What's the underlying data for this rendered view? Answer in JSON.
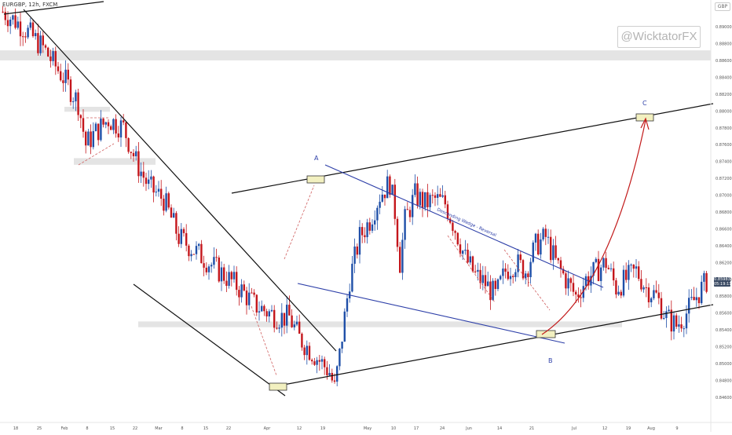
{
  "symbol_label": "EURGBP, 12h, FXCM",
  "watermark": "@WicktatorFX",
  "currency": "GBP",
  "price_label": {
    "price": "0.85983",
    "countdown": "05:19:11"
  },
  "colors": {
    "bull": "#1f4fa8",
    "bear": "#c4161c",
    "wedge": "#2d3fa8",
    "arrow": "#c21a1a",
    "zone": "#e4e4e4",
    "box": "#f2f0c0"
  },
  "chart_data": {
    "type": "candlestick",
    "title": "",
    "instrument": "EURGBP",
    "timeframe": "12h",
    "ylim": [
      0.843,
      0.893
    ],
    "y_ticks": [
      "0.89200",
      "0.89000",
      "0.88800",
      "0.88600",
      "0.88400",
      "0.88200",
      "0.88000",
      "0.87800",
      "0.87600",
      "0.87400",
      "0.87200",
      "0.87000",
      "0.86800",
      "0.86600",
      "0.86400",
      "0.86200",
      "0.86000",
      "0.85800",
      "0.85600",
      "0.85400",
      "0.85200",
      "0.85000",
      "0.84800",
      "0.84600"
    ],
    "x_ticks": [
      "18",
      "25",
      "Feb",
      "8",
      "15",
      "22",
      "Mar",
      "8",
      "15",
      "22",
      "Apr",
      "12",
      "19",
      "May",
      "10",
      "17",
      "24",
      "Jun",
      "14",
      "21",
      "Jul",
      "12",
      "19",
      "Aug",
      "9"
    ],
    "current_price": 0.85983,
    "path_anchors": [
      [
        0,
        0.8918
      ],
      [
        8,
        0.89
      ],
      [
        16,
        0.8875
      ],
      [
        24,
        0.884
      ],
      [
        30,
        0.881
      ],
      [
        33,
        0.876
      ],
      [
        37,
        0.8775
      ],
      [
        42,
        0.879
      ],
      [
        48,
        0.878
      ],
      [
        53,
        0.874
      ],
      [
        58,
        0.871
      ],
      [
        64,
        0.8695
      ],
      [
        70,
        0.865
      ],
      [
        78,
        0.863
      ],
      [
        86,
        0.861
      ],
      [
        94,
        0.859
      ],
      [
        100,
        0.857
      ],
      [
        106,
        0.856
      ],
      [
        110,
        0.8555
      ],
      [
        114,
        0.8555
      ],
      [
        118,
        0.853
      ],
      [
        124,
        0.851
      ],
      [
        130,
        0.849
      ],
      [
        132,
        0.847
      ],
      [
        134,
        0.851
      ],
      [
        138,
        0.86
      ],
      [
        142,
        0.865
      ],
      [
        146,
        0.867
      ],
      [
        150,
        0.87
      ],
      [
        154,
        0.8715
      ],
      [
        156,
        0.868
      ],
      [
        158,
        0.862
      ],
      [
        160,
        0.867
      ],
      [
        164,
        0.87
      ],
      [
        168,
        0.869
      ],
      [
        172,
        0.8695
      ],
      [
        176,
        0.869
      ],
      [
        180,
        0.866
      ],
      [
        184,
        0.8625
      ],
      [
        188,
        0.8605
      ],
      [
        192,
        0.8595
      ],
      [
        196,
        0.858
      ],
      [
        200,
        0.861
      ],
      [
        204,
        0.862
      ],
      [
        208,
        0.861
      ],
      [
        212,
        0.864
      ],
      [
        216,
        0.865
      ],
      [
        220,
        0.862
      ],
      [
        224,
        0.86
      ],
      [
        228,
        0.858
      ],
      [
        232,
        0.86
      ],
      [
        236,
        0.861
      ],
      [
        240,
        0.862
      ],
      [
        244,
        0.859
      ],
      [
        248,
        0.86
      ],
      [
        252,
        0.861
      ],
      [
        256,
        0.859
      ],
      [
        260,
        0.858
      ],
      [
        264,
        0.8555
      ],
      [
        268,
        0.8545
      ],
      [
        272,
        0.856
      ],
      [
        276,
        0.858
      ],
      [
        280,
        0.8598
      ]
    ],
    "support_resistance_zones": [
      {
        "from": 0.8872,
        "to": 0.8862
      },
      {
        "from": 0.8805,
        "to": 0.8801
      },
      {
        "from": 0.8744,
        "to": 0.8738
      },
      {
        "from": 0.855,
        "to": 0.8545
      }
    ],
    "annotations": {
      "wedge_label": "Descending Wedge - Reversal",
      "point_a": "A",
      "point_b": "B",
      "point_c": "C"
    },
    "grid": false,
    "legend": "none"
  }
}
